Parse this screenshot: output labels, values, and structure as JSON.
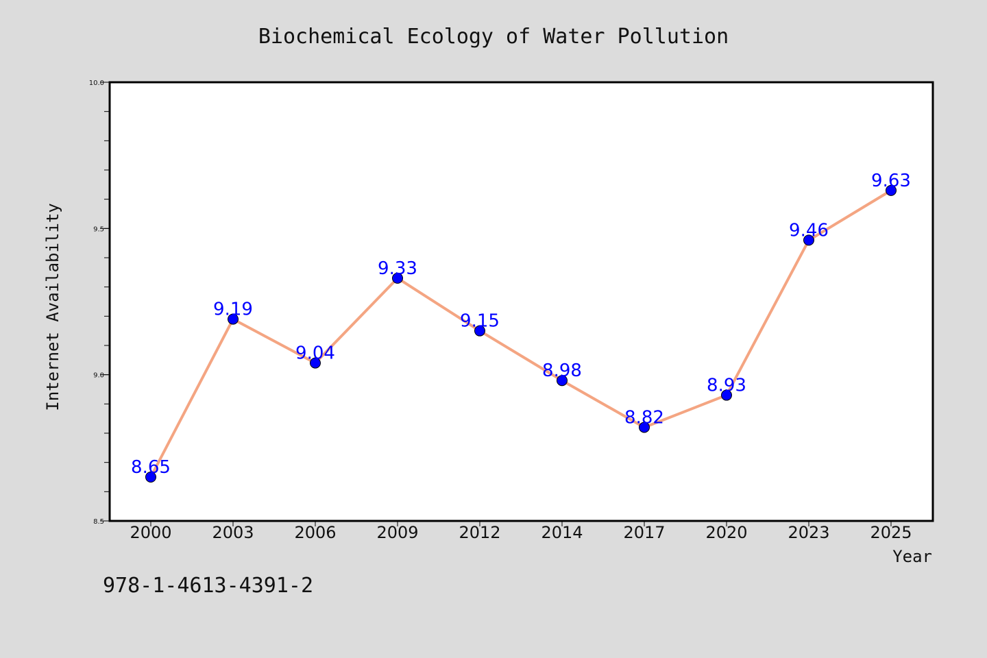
{
  "chart_data": {
    "type": "line",
    "title": "Biochemical Ecology of Water Pollution",
    "xlabel": "Year",
    "ylabel": "Internet Availability",
    "categories": [
      "2000",
      "2003",
      "2006",
      "2009",
      "2012",
      "2014",
      "2017",
      "2020",
      "2023",
      "2025"
    ],
    "values": [
      8.65,
      9.19,
      9.04,
      9.33,
      9.15,
      8.98,
      8.82,
      8.93,
      9.46,
      9.63
    ],
    "value_labels": [
      "8.65",
      "9.19",
      "9.04",
      "9.33",
      "9.15",
      "8.98",
      "8.82",
      "8.93",
      "9.46",
      "9.63"
    ],
    "ylim": [
      8.5,
      10.0
    ],
    "yticks": [
      "8.5",
      "9.0",
      "9.5",
      "10.0"
    ],
    "ytick_values": [
      8.5,
      9.0,
      9.5,
      10.0
    ],
    "minor_step": 0.1,
    "grid": false,
    "colors": {
      "line": "#f4a582",
      "marker": "#0000ff",
      "data_label": "#0000ff",
      "background": "#dcdcdc",
      "plot_background": "#ffffff"
    }
  },
  "footer": {
    "isbn": "978-1-4613-4391-2"
  }
}
